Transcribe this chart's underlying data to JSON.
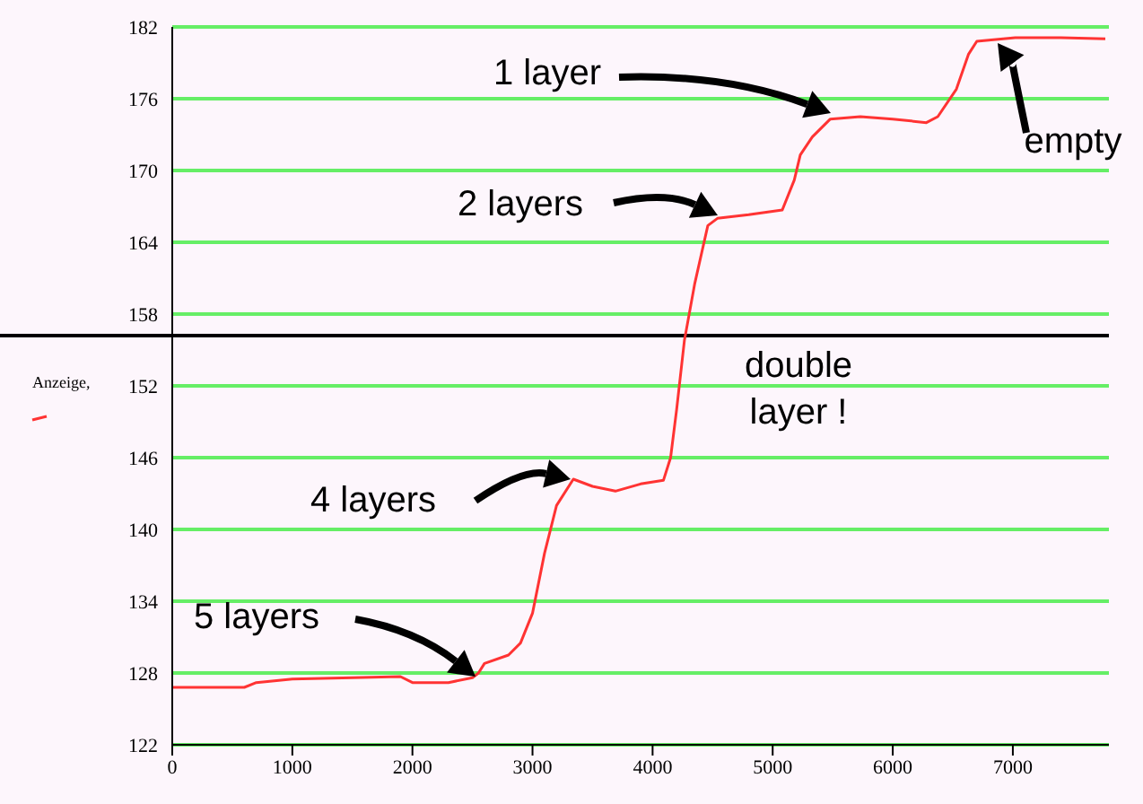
{
  "chart_data": {
    "type": "line",
    "legend": "left",
    "grid": "y",
    "marker": "none",
    "line_style": "solid",
    "xlim": [
      0,
      7800
    ],
    "xticks": [
      0,
      1000,
      2000,
      3000,
      4000,
      5000,
      6000,
      7000
    ],
    "ylim": [
      122,
      182
    ],
    "yticks": [
      122,
      128,
      134,
      140,
      146,
      152,
      158,
      164,
      170,
      176,
      182
    ],
    "series": [
      {
        "name": "Anzeige,",
        "color": "#ff3333",
        "x": [
          0,
          300,
          600,
          700,
          1000,
          1500,
          1900,
          2000,
          2300,
          2500,
          2550,
          2600,
          2800,
          2900,
          3000,
          3100,
          3200,
          3340,
          3500,
          3690,
          3900,
          4090,
          4150,
          4200,
          4265,
          4350,
          4460,
          4540,
          4800,
          5080,
          5180,
          5230,
          5330,
          5480,
          5730,
          6000,
          6280,
          6375,
          6530,
          6630,
          6700,
          7020,
          7400,
          7770
        ],
        "values": [
          126.8,
          126.8,
          126.8,
          127.2,
          127.5,
          127.6,
          127.7,
          127.2,
          127.2,
          127.6,
          128,
          128.8,
          129.5,
          130.5,
          133,
          138,
          142,
          144.2,
          143.6,
          143.2,
          143.8,
          144.1,
          146,
          150,
          155.8,
          160.5,
          165.4,
          166,
          166.3,
          166.7,
          169.2,
          171.3,
          172.8,
          174.3,
          174.5,
          174.3,
          174,
          174.5,
          176.8,
          179.7,
          180.8,
          181.1,
          181.1,
          181
        ]
      }
    ],
    "ref_lines": [
      {
        "axis": "y",
        "value": 156.2,
        "color": "#000000"
      }
    ],
    "annotations": [
      "1 layer",
      "2 layers",
      "empty",
      "double layer !",
      "4 layers",
      "5 layers"
    ]
  }
}
